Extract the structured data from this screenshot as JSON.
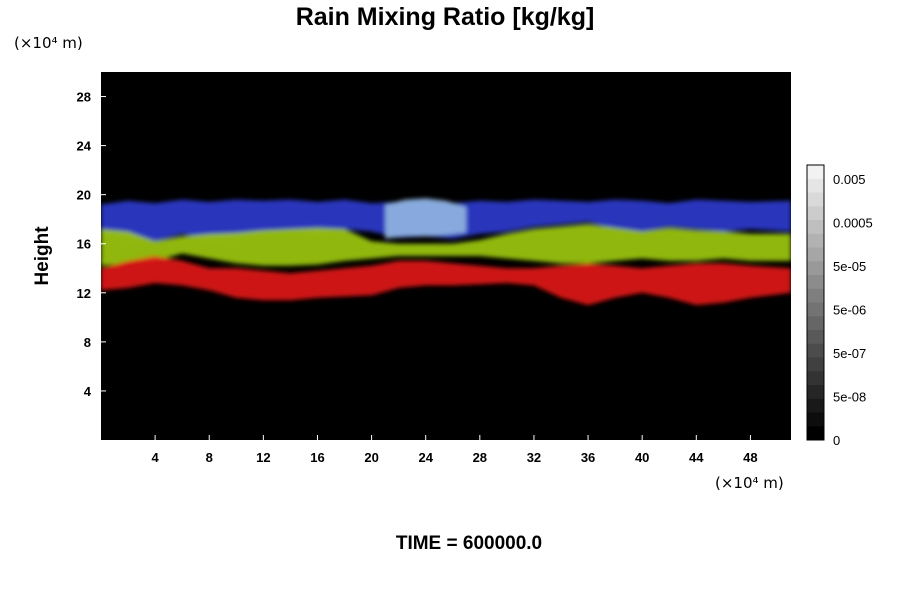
{
  "chart_data": {
    "type": "heatmap",
    "title": "Rain Mixing Ratio [kg/kg]",
    "xlabel": "",
    "ylabel": "Height",
    "x_unit": "(×10⁴ m)",
    "y_unit": "(×10⁴ m)",
    "xlim": [
      0,
      51
    ],
    "ylim": [
      0,
      30
    ],
    "x_ticks": [
      4,
      8,
      12,
      16,
      20,
      24,
      28,
      32,
      36,
      40,
      44,
      48
    ],
    "y_ticks": [
      4,
      8,
      12,
      16,
      20,
      24,
      28
    ],
    "background_color": "#000000",
    "footer": "TIME = 600000.0",
    "layers": [
      {
        "color": "#2a3acc",
        "top": [
          [
            0,
            19.2
          ],
          [
            2,
            19.5
          ],
          [
            4,
            19.3
          ],
          [
            6,
            19.6
          ],
          [
            8,
            19.4
          ],
          [
            10,
            19.6
          ],
          [
            12,
            19.5
          ],
          [
            14,
            19.6
          ],
          [
            16,
            19.4
          ],
          [
            18,
            19.6
          ],
          [
            20,
            19.3
          ],
          [
            22,
            19.4
          ],
          [
            24,
            19.5
          ],
          [
            26,
            19.3
          ],
          [
            28,
            19.5
          ],
          [
            30,
            19.4
          ],
          [
            32,
            19.6
          ],
          [
            34,
            19.5
          ],
          [
            36,
            19.4
          ],
          [
            38,
            19.6
          ],
          [
            40,
            19.5
          ],
          [
            42,
            19.3
          ],
          [
            44,
            19.6
          ],
          [
            46,
            19.5
          ],
          [
            48,
            19.4
          ],
          [
            51,
            19.5
          ]
        ],
        "bottom": [
          [
            0,
            16.8
          ],
          [
            2,
            16.5
          ],
          [
            4,
            16.2
          ],
          [
            6,
            16.8
          ],
          [
            8,
            16.4
          ],
          [
            10,
            16.6
          ],
          [
            12,
            16.9
          ],
          [
            14,
            17.0
          ],
          [
            16,
            16.8
          ],
          [
            18,
            17.2
          ],
          [
            20,
            17.0
          ],
          [
            22,
            16.5
          ],
          [
            24,
            16.6
          ],
          [
            26,
            16.4
          ],
          [
            28,
            16.8
          ],
          [
            30,
            17.0
          ],
          [
            32,
            17.4
          ],
          [
            34,
            17.6
          ],
          [
            36,
            17.8
          ],
          [
            38,
            17.2
          ],
          [
            40,
            17.0
          ],
          [
            42,
            17.4
          ],
          [
            44,
            17.2
          ],
          [
            46,
            17.0
          ],
          [
            48,
            17.2
          ],
          [
            51,
            17.0
          ]
        ]
      },
      {
        "color": "#8fb3e0",
        "top": [
          [
            21,
            19.2
          ],
          [
            22.5,
            19.6
          ],
          [
            24,
            19.7
          ],
          [
            25.5,
            19.5
          ],
          [
            27,
            19.0
          ]
        ],
        "bottom": [
          [
            21,
            16.4
          ],
          [
            22.5,
            16.6
          ],
          [
            24,
            16.6
          ],
          [
            25.5,
            16.7
          ],
          [
            27,
            16.9
          ]
        ]
      },
      {
        "color": "#9cc70f",
        "top": [
          [
            0,
            17.2
          ],
          [
            2,
            17.0
          ],
          [
            4,
            16.2
          ],
          [
            6,
            16.6
          ],
          [
            8,
            16.8
          ],
          [
            10,
            16.9
          ],
          [
            12,
            17.1
          ],
          [
            14,
            17.2
          ],
          [
            16,
            17.3
          ],
          [
            18,
            17.2
          ],
          [
            20,
            16.2
          ],
          [
            22,
            16.0
          ],
          [
            24,
            16.0
          ],
          [
            26,
            16.0
          ],
          [
            28,
            16.3
          ],
          [
            30,
            16.8
          ],
          [
            32,
            17.2
          ],
          [
            34,
            17.4
          ],
          [
            36,
            17.6
          ],
          [
            38,
            17.3
          ],
          [
            40,
            17.0
          ],
          [
            42,
            17.3
          ],
          [
            44,
            17.1
          ],
          [
            46,
            17.0
          ],
          [
            48,
            16.8
          ],
          [
            51,
            16.8
          ]
        ],
        "bottom": [
          [
            0,
            14.2
          ],
          [
            2,
            14.4
          ],
          [
            4,
            14.6
          ],
          [
            6,
            15.2
          ],
          [
            8,
            14.8
          ],
          [
            10,
            14.4
          ],
          [
            12,
            14.2
          ],
          [
            14,
            14.2
          ],
          [
            16,
            14.3
          ],
          [
            18,
            14.6
          ],
          [
            20,
            14.8
          ],
          [
            22,
            15.0
          ],
          [
            24,
            15.0
          ],
          [
            26,
            15.0
          ],
          [
            28,
            15.0
          ],
          [
            30,
            14.8
          ],
          [
            32,
            14.6
          ],
          [
            34,
            14.4
          ],
          [
            36,
            14.4
          ],
          [
            38,
            14.6
          ],
          [
            40,
            14.8
          ],
          [
            42,
            14.6
          ],
          [
            44,
            14.6
          ],
          [
            46,
            14.8
          ],
          [
            48,
            14.6
          ],
          [
            51,
            14.6
          ]
        ]
      },
      {
        "color": "#e01414",
        "top": [
          [
            0,
            14.0
          ],
          [
            2,
            14.6
          ],
          [
            4,
            15.0
          ],
          [
            6,
            14.6
          ],
          [
            8,
            14.0
          ],
          [
            10,
            14.0
          ],
          [
            12,
            13.8
          ],
          [
            14,
            13.6
          ],
          [
            16,
            13.8
          ],
          [
            18,
            14.0
          ],
          [
            20,
            14.2
          ],
          [
            22,
            14.6
          ],
          [
            24,
            14.6
          ],
          [
            26,
            14.4
          ],
          [
            28,
            14.2
          ],
          [
            30,
            14.0
          ],
          [
            32,
            14.0
          ],
          [
            34,
            14.2
          ],
          [
            36,
            14.4
          ],
          [
            38,
            14.2
          ],
          [
            40,
            14.0
          ],
          [
            42,
            14.2
          ],
          [
            44,
            14.4
          ],
          [
            46,
            14.4
          ],
          [
            48,
            14.2
          ],
          [
            51,
            14.0
          ]
        ],
        "bottom": [
          [
            0,
            12.2
          ],
          [
            2,
            12.4
          ],
          [
            4,
            12.8
          ],
          [
            6,
            12.6
          ],
          [
            8,
            12.2
          ],
          [
            10,
            11.6
          ],
          [
            12,
            11.4
          ],
          [
            14,
            11.4
          ],
          [
            16,
            11.6
          ],
          [
            18,
            11.7
          ],
          [
            20,
            11.8
          ],
          [
            22,
            12.4
          ],
          [
            24,
            12.6
          ],
          [
            26,
            12.6
          ],
          [
            28,
            12.7
          ],
          [
            30,
            12.8
          ],
          [
            32,
            12.6
          ],
          [
            34,
            11.6
          ],
          [
            36,
            11.0
          ],
          [
            38,
            11.6
          ],
          [
            40,
            12.0
          ],
          [
            42,
            11.6
          ],
          [
            44,
            11.0
          ],
          [
            46,
            11.2
          ],
          [
            48,
            11.6
          ],
          [
            51,
            12.0
          ]
        ]
      }
    ],
    "colorbar": {
      "tick_labels": [
        "0.005",
        "0.0005",
        "5e-05",
        "5e-06",
        "5e-07",
        "5e-08",
        "0"
      ],
      "levels": 20,
      "top_color": "#f2f2f2",
      "bottom_color": "#000000"
    }
  }
}
